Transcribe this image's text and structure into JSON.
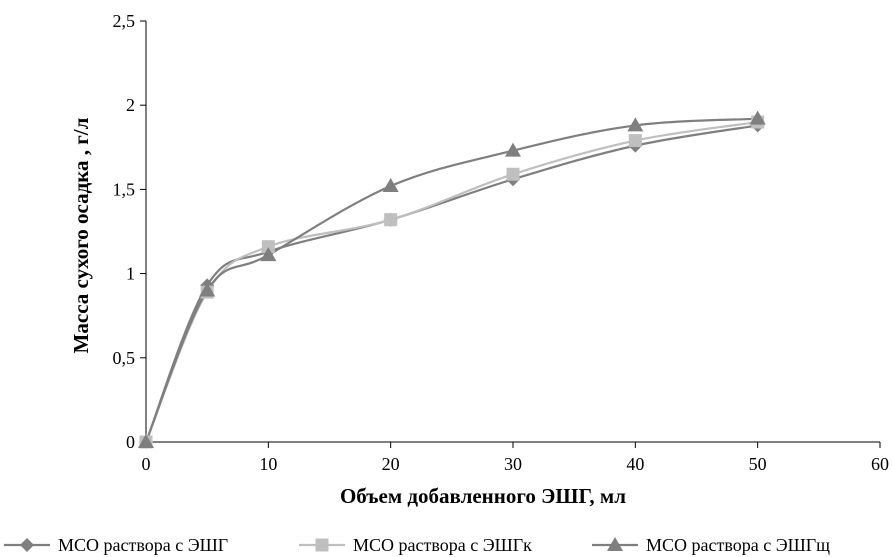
{
  "chart_data": {
    "type": "line",
    "title": "",
    "xlabel": "Объем добавленного ЭШГ, мл",
    "ylabel": "Масса сухого осадка , г/л",
    "xlim": [
      0,
      60
    ],
    "ylim": [
      0,
      2.5
    ],
    "x_ticks": [
      "0",
      "10",
      "20",
      "30",
      "40",
      "50",
      "60"
    ],
    "y_ticks": [
      "0",
      "0,5",
      "1",
      "1,5",
      "2",
      "2,5"
    ],
    "grid": false,
    "legend_position": "bottom",
    "series": [
      {
        "name": "МСО раствора с ЭШГ",
        "marker": "diamond",
        "color": "#7f7f7f",
        "x": [
          0,
          5,
          10,
          20,
          30,
          40,
          50
        ],
        "y": [
          0,
          0.93,
          1.13,
          1.32,
          1.56,
          1.76,
          1.88
        ]
      },
      {
        "name": "МСО раствора с ЭШГк",
        "marker": "square",
        "color": "#bfbfbf",
        "x": [
          0,
          5,
          10,
          20,
          30,
          40,
          50
        ],
        "y": [
          0,
          0.89,
          1.16,
          1.32,
          1.59,
          1.79,
          1.9
        ]
      },
      {
        "name": "МСО раствора с ЭШГщ",
        "marker": "triangle",
        "color": "#7f7f7f",
        "x": [
          0,
          5,
          10,
          20,
          30,
          40,
          50
        ],
        "y": [
          0,
          0.9,
          1.11,
          1.52,
          1.73,
          1.88,
          1.92
        ]
      }
    ]
  }
}
